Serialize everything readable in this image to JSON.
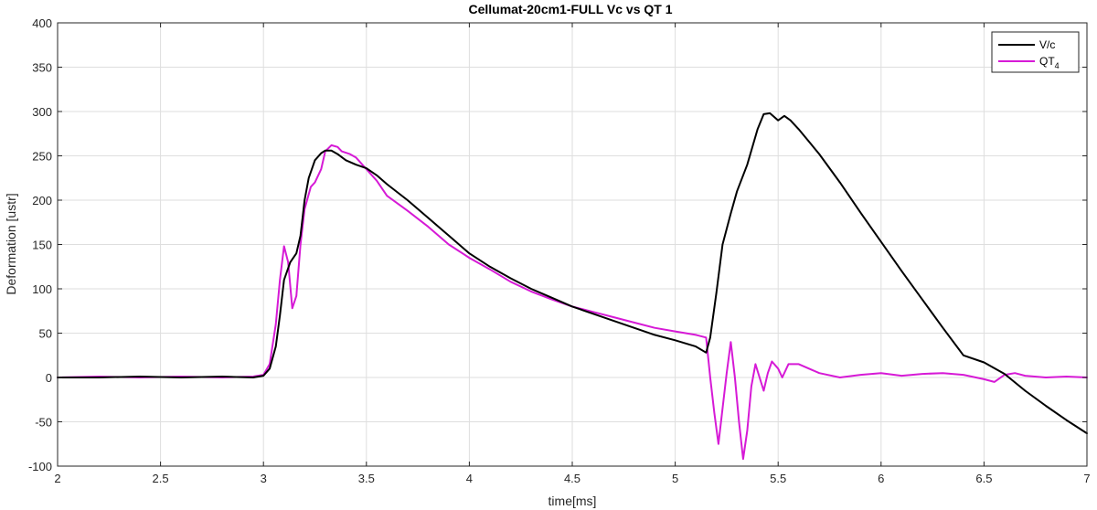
{
  "chart_data": {
    "type": "line",
    "title": "Cellumat-20cm1-FULL Vc vs QT 1",
    "xlabel": "time[ms]",
    "ylabel": "Deformation [ustr]",
    "xlim": [
      2,
      7
    ],
    "ylim": [
      -100,
      400
    ],
    "xticks": [
      2,
      2.5,
      3,
      3.5,
      4,
      4.5,
      5,
      5.5,
      6,
      6.5,
      7
    ],
    "xtick_labels": [
      "2",
      "2.5",
      "3",
      "3.5",
      "4",
      "4.5",
      "5",
      "5.5",
      "6",
      "6.5",
      "7"
    ],
    "yticks": [
      -100,
      -50,
      0,
      50,
      100,
      150,
      200,
      250,
      300,
      350,
      400
    ],
    "ytick_labels": [
      "-100",
      "-50",
      "0",
      "50",
      "100",
      "150",
      "200",
      "250",
      "300",
      "350",
      "400"
    ],
    "grid": true,
    "legend_position": "top-right",
    "series": [
      {
        "name": "V/c",
        "color": "#000000",
        "x": [
          2.0,
          2.2,
          2.4,
          2.6,
          2.8,
          2.95,
          3.0,
          3.03,
          3.06,
          3.08,
          3.1,
          3.13,
          3.16,
          3.18,
          3.2,
          3.22,
          3.25,
          3.28,
          3.3,
          3.33,
          3.36,
          3.4,
          3.45,
          3.5,
          3.55,
          3.6,
          3.7,
          3.8,
          3.9,
          4.0,
          4.1,
          4.2,
          4.3,
          4.4,
          4.5,
          4.6,
          4.7,
          4.8,
          4.9,
          5.0,
          5.1,
          5.15,
          5.17,
          5.2,
          5.23,
          5.27,
          5.3,
          5.35,
          5.4,
          5.43,
          5.46,
          5.5,
          5.53,
          5.56,
          5.6,
          5.7,
          5.8,
          5.9,
          6.0,
          6.1,
          6.2,
          6.3,
          6.4,
          6.5,
          6.6,
          6.7,
          6.8,
          6.9,
          7.0
        ],
        "y": [
          0,
          0,
          1,
          0,
          1,
          0,
          2,
          10,
          35,
          70,
          110,
          130,
          140,
          160,
          200,
          225,
          245,
          253,
          256,
          256,
          252,
          245,
          240,
          236,
          228,
          218,
          200,
          180,
          160,
          140,
          125,
          112,
          100,
          90,
          80,
          72,
          64,
          56,
          48,
          42,
          35,
          28,
          45,
          95,
          150,
          185,
          210,
          240,
          280,
          297,
          298,
          290,
          295,
          290,
          280,
          252,
          220,
          186,
          153,
          120,
          88,
          56,
          25,
          17,
          4,
          -15,
          -32,
          -48,
          -63
        ]
      },
      {
        "name": "QT4",
        "color": "#d61ad6",
        "x": [
          2.0,
          2.2,
          2.4,
          2.6,
          2.8,
          2.95,
          3.0,
          3.03,
          3.06,
          3.08,
          3.1,
          3.12,
          3.14,
          3.16,
          3.18,
          3.2,
          3.23,
          3.25,
          3.28,
          3.3,
          3.33,
          3.36,
          3.38,
          3.42,
          3.45,
          3.5,
          3.55,
          3.6,
          3.7,
          3.8,
          3.9,
          4.0,
          4.1,
          4.2,
          4.3,
          4.4,
          4.5,
          4.6,
          4.7,
          4.8,
          4.9,
          5.0,
          5.1,
          5.15,
          5.17,
          5.19,
          5.21,
          5.23,
          5.25,
          5.27,
          5.29,
          5.31,
          5.33,
          5.35,
          5.37,
          5.39,
          5.41,
          5.43,
          5.45,
          5.47,
          5.5,
          5.52,
          5.55,
          5.6,
          5.7,
          5.8,
          5.9,
          6.0,
          6.1,
          6.2,
          6.3,
          6.4,
          6.5,
          6.55,
          6.6,
          6.65,
          6.7,
          6.8,
          6.9,
          7.0
        ],
        "y": [
          0,
          1,
          0,
          1,
          0,
          1,
          3,
          15,
          60,
          110,
          148,
          130,
          78,
          92,
          150,
          190,
          215,
          220,
          235,
          255,
          262,
          260,
          255,
          252,
          248,
          235,
          222,
          205,
          188,
          170,
          150,
          135,
          122,
          108,
          97,
          88,
          80,
          74,
          68,
          62,
          56,
          52,
          48,
          45,
          0,
          -40,
          -75,
          -35,
          5,
          40,
          0,
          -50,
          -92,
          -60,
          -10,
          15,
          0,
          -15,
          5,
          18,
          10,
          0,
          15,
          15,
          5,
          0,
          3,
          5,
          2,
          4,
          5,
          3,
          -2,
          -5,
          3,
          5,
          2,
          0,
          1,
          0
        ]
      }
    ],
    "legend": [
      {
        "label": "V/c",
        "color": "#000000",
        "subscript": ""
      },
      {
        "label": "QT",
        "color": "#d61ad6",
        "subscript": "4"
      }
    ]
  }
}
